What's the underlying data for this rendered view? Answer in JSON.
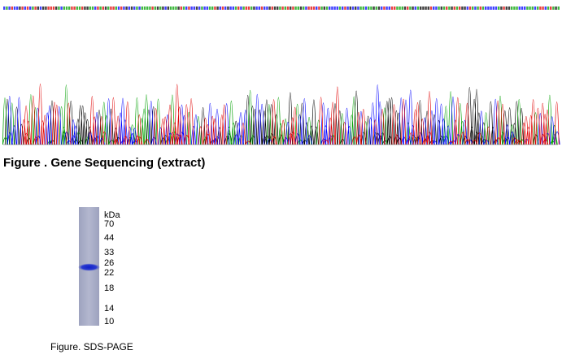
{
  "figure_1": {
    "caption": "Figure . Gene Sequencing (extract)"
  },
  "figure_2": {
    "unit_label": "kDa",
    "markers": [
      70,
      44,
      33,
      26,
      22,
      18,
      14,
      10
    ],
    "caption": "Figure. SDS-PAGE"
  }
}
